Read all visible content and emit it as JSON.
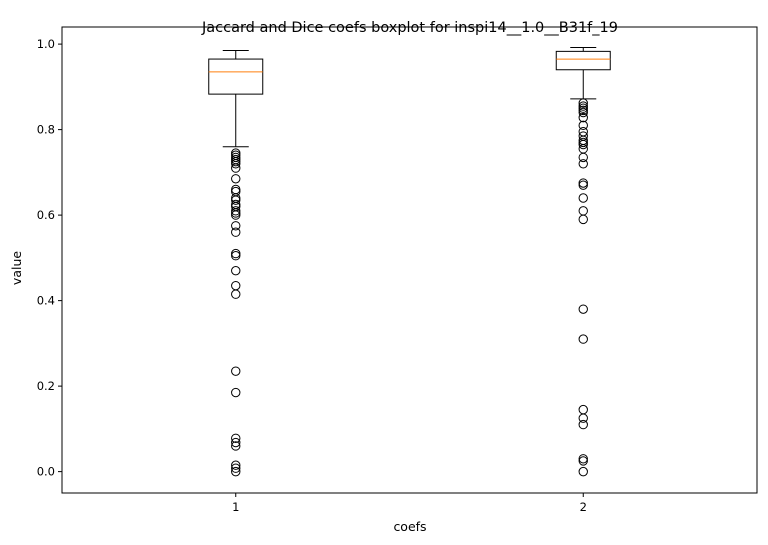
{
  "chart_data": {
    "type": "boxplot",
    "title": "Jaccard and Dice coefs boxplot for inspi14__1.0__B31f_19",
    "xlabel": "coefs",
    "ylabel": "value",
    "xlim": [
      0.5,
      2.5
    ],
    "ylim": [
      -0.05,
      1.04
    ],
    "x_ticks": [
      "1",
      "2"
    ],
    "y_ticks": [
      "0.0",
      "0.2",
      "0.4",
      "0.6",
      "0.8",
      "1.0"
    ],
    "grid": false,
    "colors": {
      "box": "#000000",
      "median": "#ff7f0e",
      "outlier": "#000000"
    },
    "boxes": [
      {
        "position": 1,
        "whisker_low": 0.76,
        "q1": 0.883,
        "median": 0.935,
        "q3": 0.965,
        "whisker_high": 0.985,
        "outliers": [
          0.745,
          0.74,
          0.735,
          0.73,
          0.725,
          0.72,
          0.71,
          0.685,
          0.66,
          0.655,
          0.64,
          0.635,
          0.625,
          0.62,
          0.61,
          0.605,
          0.6,
          0.575,
          0.56,
          0.51,
          0.505,
          0.47,
          0.435,
          0.415,
          0.235,
          0.185,
          0.078,
          0.068,
          0.06,
          0.015,
          0.008,
          0.0
        ]
      },
      {
        "position": 2,
        "whisker_low": 0.872,
        "q1": 0.94,
        "median": 0.965,
        "q3": 0.983,
        "whisker_high": 0.992,
        "outliers": [
          0.862,
          0.855,
          0.85,
          0.845,
          0.84,
          0.828,
          0.81,
          0.795,
          0.785,
          0.775,
          0.77,
          0.765,
          0.755,
          0.735,
          0.72,
          0.675,
          0.67,
          0.64,
          0.61,
          0.59,
          0.38,
          0.31,
          0.145,
          0.125,
          0.11,
          0.03,
          0.025,
          0.0
        ]
      }
    ]
  }
}
